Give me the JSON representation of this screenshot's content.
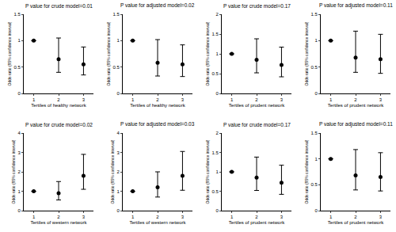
{
  "chart_data": [
    {
      "type": "scatter",
      "title": "P value for crude model=0.01",
      "x_label": "Tertiles of healthy network",
      "y_label": "Odds ratio (95% confidence interval)",
      "x": [
        1,
        2,
        3
      ],
      "xlim": [
        0.6,
        3.4
      ],
      "xticks": [
        1,
        2,
        3
      ],
      "values": [
        1,
        0.65,
        0.55
      ],
      "ci_lower": [
        null,
        0.4,
        0.35
      ],
      "ci_upper": [
        null,
        1.05,
        0.88
      ],
      "ylim": [
        0,
        1.5
      ],
      "yticks": [
        0,
        0.5,
        1,
        1.5
      ],
      "color": "#000000",
      "marker": "circle"
    },
    {
      "type": "scatter",
      "title": "P value for adjusted model=0.02",
      "x_label": "Tertiles of healthy network",
      "y_label": "Odds ratio (95% confidence interval)",
      "x": [
        1,
        2,
        3
      ],
      "xlim": [
        0.6,
        3.4
      ],
      "xticks": [
        1,
        2,
        3
      ],
      "values": [
        1,
        0.58,
        0.55
      ],
      "ci_lower": [
        null,
        0.33,
        0.32
      ],
      "ci_upper": [
        null,
        1.02,
        0.92
      ],
      "ylim": [
        0,
        1.5
      ],
      "yticks": [
        0,
        0.5,
        1,
        1.5
      ],
      "color": "#000000",
      "marker": "circle"
    },
    {
      "type": "scatter",
      "title": "P value for crude model=0.17",
      "x_label": "Tertiles of prudent network",
      "y_label": "Odds ratio (95% confidence interval)",
      "x": [
        1,
        2,
        3
      ],
      "xlim": [
        0.6,
        3.4
      ],
      "xticks": [
        1,
        2,
        3
      ],
      "values": [
        1,
        0.85,
        0.72
      ],
      "ci_lower": [
        null,
        0.52,
        0.42
      ],
      "ci_upper": [
        null,
        1.38,
        1.17
      ],
      "ylim": [
        0,
        2
      ],
      "yticks": [
        0,
        0.5,
        1,
        1.5,
        2
      ],
      "color": "#000000",
      "marker": "circle"
    },
    {
      "type": "scatter",
      "title": "P value for adjusted model=0.11",
      "x_label": "Tertiles of prudent network",
      "y_label": "Odds ratio (95% confidence interval)",
      "x": [
        1,
        2,
        3
      ],
      "xlim": [
        0.6,
        3.4
      ],
      "xticks": [
        1,
        2,
        3
      ],
      "values": [
        1,
        0.68,
        0.65
      ],
      "ci_lower": [
        null,
        0.4,
        0.38
      ],
      "ci_upper": [
        null,
        1.18,
        1.12
      ],
      "ylim": [
        0,
        1.5
      ],
      "yticks": [
        0,
        0.5,
        1,
        1.5
      ],
      "color": "#000000",
      "marker": "circle"
    },
    {
      "type": "scatter",
      "title": "P value for crude model=0.02",
      "x_label": "Tertiles of western network",
      "y_label": "Odds ratio (95% confidence interval)",
      "x": [
        1,
        2,
        3
      ],
      "xlim": [
        0.6,
        3.4
      ],
      "xticks": [
        1,
        2,
        3
      ],
      "values": [
        1,
        0.9,
        1.8
      ],
      "ci_lower": [
        null,
        0.55,
        1.1
      ],
      "ci_upper": [
        null,
        1.5,
        2.9
      ],
      "ylim": [
        0,
        4
      ],
      "yticks": [
        0,
        1,
        2,
        3,
        4
      ],
      "color": "#000000",
      "marker": "circle"
    },
    {
      "type": "scatter",
      "title": "P value for adjusted model=0.03",
      "x_label": "Tertiles of western network",
      "y_label": "Odds ratio (95% confidence interval)",
      "x": [
        1,
        2,
        3
      ],
      "xlim": [
        0.6,
        3.4
      ],
      "xticks": [
        1,
        2,
        3
      ],
      "values": [
        1,
        1.2,
        1.8
      ],
      "ci_lower": [
        null,
        0.7,
        1.05
      ],
      "ci_upper": [
        null,
        2.0,
        3.05
      ],
      "ylim": [
        0,
        4
      ],
      "yticks": [
        0,
        1,
        2,
        3,
        4
      ],
      "color": "#000000",
      "marker": "circle"
    },
    {
      "type": "scatter",
      "title": "P value for crude model=0.17",
      "x_label": "Tertiles of prudent network",
      "y_label": "Odds ratio (95% confidence interval)",
      "x": [
        1,
        2,
        3
      ],
      "xlim": [
        0.6,
        3.4
      ],
      "xticks": [
        1,
        2,
        3
      ],
      "values": [
        1,
        0.85,
        0.72
      ],
      "ci_lower": [
        null,
        0.52,
        0.42
      ],
      "ci_upper": [
        null,
        1.38,
        1.17
      ],
      "ylim": [
        0,
        2
      ],
      "yticks": [
        0,
        0.5,
        1,
        1.5,
        2
      ],
      "color": "#000000",
      "marker": "circle"
    },
    {
      "type": "scatter",
      "title": "P value for adjusted model=0.11",
      "x_label": "Tertiles of prudent network",
      "y_label": "Odds ratio (95% confidence interval)",
      "x": [
        1,
        2,
        3
      ],
      "xlim": [
        0.6,
        3.4
      ],
      "xticks": [
        1,
        2,
        3
      ],
      "values": [
        1,
        0.68,
        0.65
      ],
      "ci_lower": [
        null,
        0.4,
        0.38
      ],
      "ci_upper": [
        null,
        1.18,
        1.12
      ],
      "ylim": [
        0,
        1.5
      ],
      "yticks": [
        0,
        0.5,
        1,
        1.5
      ],
      "color": "#000000",
      "marker": "circle"
    }
  ]
}
